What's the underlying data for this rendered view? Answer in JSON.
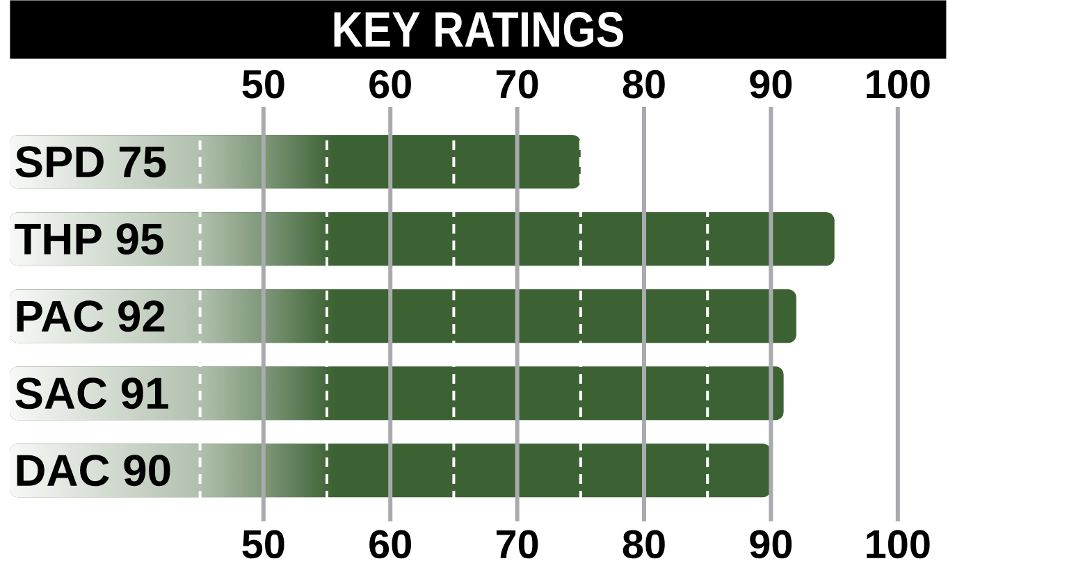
{
  "chart_data": {
    "type": "bar",
    "orientation": "horizontal",
    "title": "KEY RATINGS",
    "categories": [
      "SPD 75",
      "THP 95",
      "PAC 92",
      "SAC 91",
      "DAC 90"
    ],
    "values": [
      75,
      95,
      92,
      91,
      90
    ],
    "color": "#3c6234",
    "xlim": [
      30,
      100
    ],
    "xticks": [
      {
        "value": 45,
        "label": null
      },
      50,
      {
        "value": 55,
        "label": null
      },
      60,
      {
        "value": 65,
        "label": null
      },
      70,
      {
        "value": 75,
        "label": null
      },
      80,
      {
        "value": 85,
        "label": null
      },
      90,
      100
    ],
    "x2lim": [
      30,
      100
    ],
    "x2ticks": [
      50,
      60,
      70,
      80,
      90,
      100
    ],
    "grid": "x"
  }
}
